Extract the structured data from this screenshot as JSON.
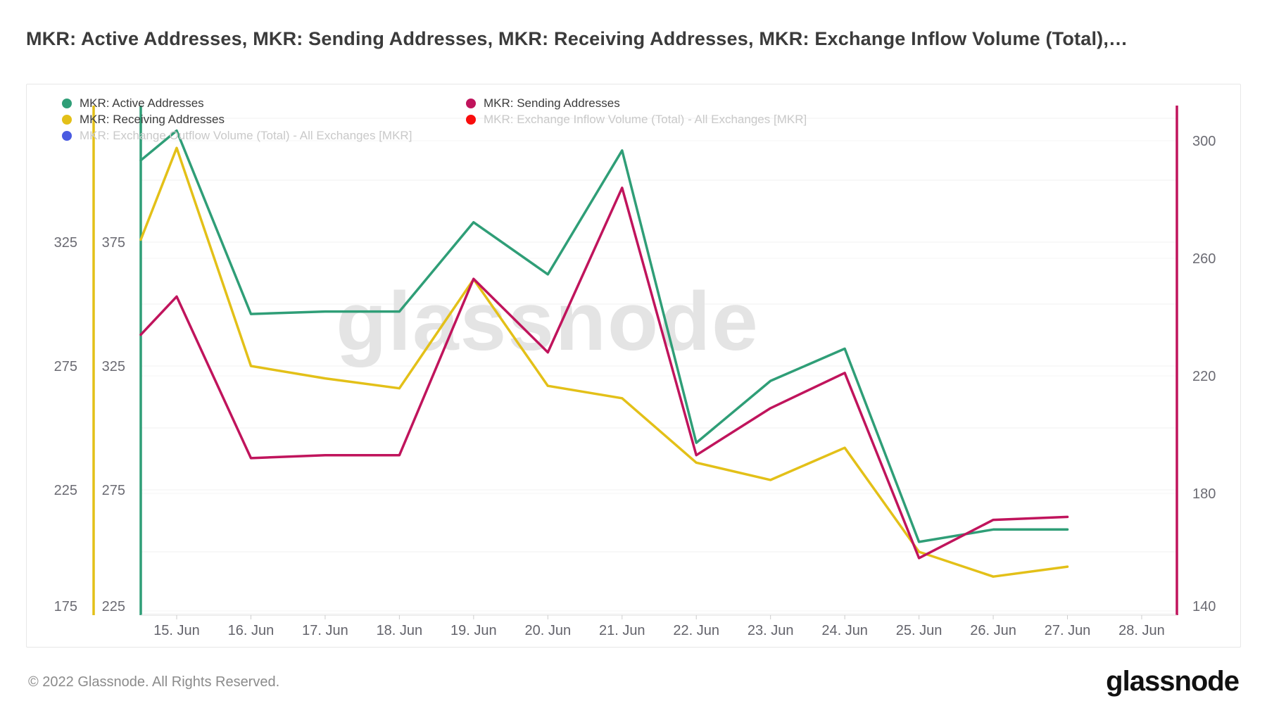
{
  "title": "MKR: Active Addresses, MKR: Sending Addresses, MKR: Receiving Addresses, MKR: Exchange Inflow Volume (Total),…",
  "watermark": "glassnode",
  "footer": {
    "copyright": "© 2022 Glassnode. All Rights Reserved.",
    "logo": "glassnode"
  },
  "legend": [
    {
      "label": "MKR: Active Addresses",
      "color": "#2f9e77",
      "disabled": false
    },
    {
      "label": "MKR: Sending Addresses",
      "color": "#c0145c",
      "disabled": false
    },
    {
      "label": "MKR: Receiving Addresses",
      "color": "#e3c018",
      "disabled": false
    },
    {
      "label": "MKR: Exchange Inflow Volume (Total) - All Exchanges [MKR]",
      "color": "#f90d0d",
      "disabled": true
    },
    {
      "label": "MKR: Exchange Outflow Volume (Total) - All Exchanges [MKR]",
      "color": "#4a5be1",
      "disabled": true
    }
  ],
  "chart_data": {
    "type": "line",
    "x_days": [
      14.5,
      15,
      16,
      17,
      18,
      19,
      20,
      21,
      22,
      23,
      24,
      25,
      26,
      27
    ],
    "x_tick_labels": [
      "15. Jun",
      "16. Jun",
      "17. Jun",
      "18. Jun",
      "19. Jun",
      "20. Jun",
      "21. Jun",
      "22. Jun",
      "23. Jun",
      "24. Jun",
      "25. Jun",
      "26. Jun",
      "27. Jun",
      "28. Jun"
    ],
    "grid": "on",
    "legend_position": "top",
    "axes": {
      "left_outer": {
        "series": "MKR: Receiving Addresses",
        "color": "#e3c018",
        "ticks": [
          175,
          225,
          275,
          325
        ],
        "range_visible": [
          175,
          375
        ]
      },
      "left_inner": {
        "series": "MKR: Active Addresses",
        "color": "#2f9e77",
        "ticks": [
          225,
          275,
          325,
          375
        ],
        "range_visible": [
          225,
          425
        ]
      },
      "right": {
        "series": "MKR: Sending Addresses",
        "color": "#c0145c",
        "ticks": [
          140,
          180,
          220,
          260,
          300
        ],
        "range_visible": [
          140,
          310
        ]
      }
    },
    "series": [
      {
        "name": "MKR: Active Addresses",
        "axis": "left_inner",
        "color": "#2f9e77",
        "values": [
          408,
          420,
          346,
          347,
          347,
          383,
          362,
          412,
          294,
          319,
          332,
          254,
          259,
          259
        ]
      },
      {
        "name": "MKR: Receiving Addresses",
        "axis": "left_outer",
        "color": "#e3c018",
        "values": [
          326,
          363,
          275,
          270,
          266,
          310,
          267,
          262,
          236,
          229,
          242,
          200,
          190,
          194
        ]
      },
      {
        "name": "MKR: Sending Addresses",
        "axis": "right",
        "color": "#c0145c",
        "values": [
          234,
          247,
          192,
          193,
          193,
          253,
          228,
          284,
          193,
          209,
          221,
          158,
          171,
          172
        ]
      }
    ],
    "hidden_series": [
      "MKR: Exchange Inflow Volume (Total) - All Exchanges [MKR]",
      "MKR: Exchange Outflow Volume (Total) - All Exchanges [MKR]"
    ]
  }
}
